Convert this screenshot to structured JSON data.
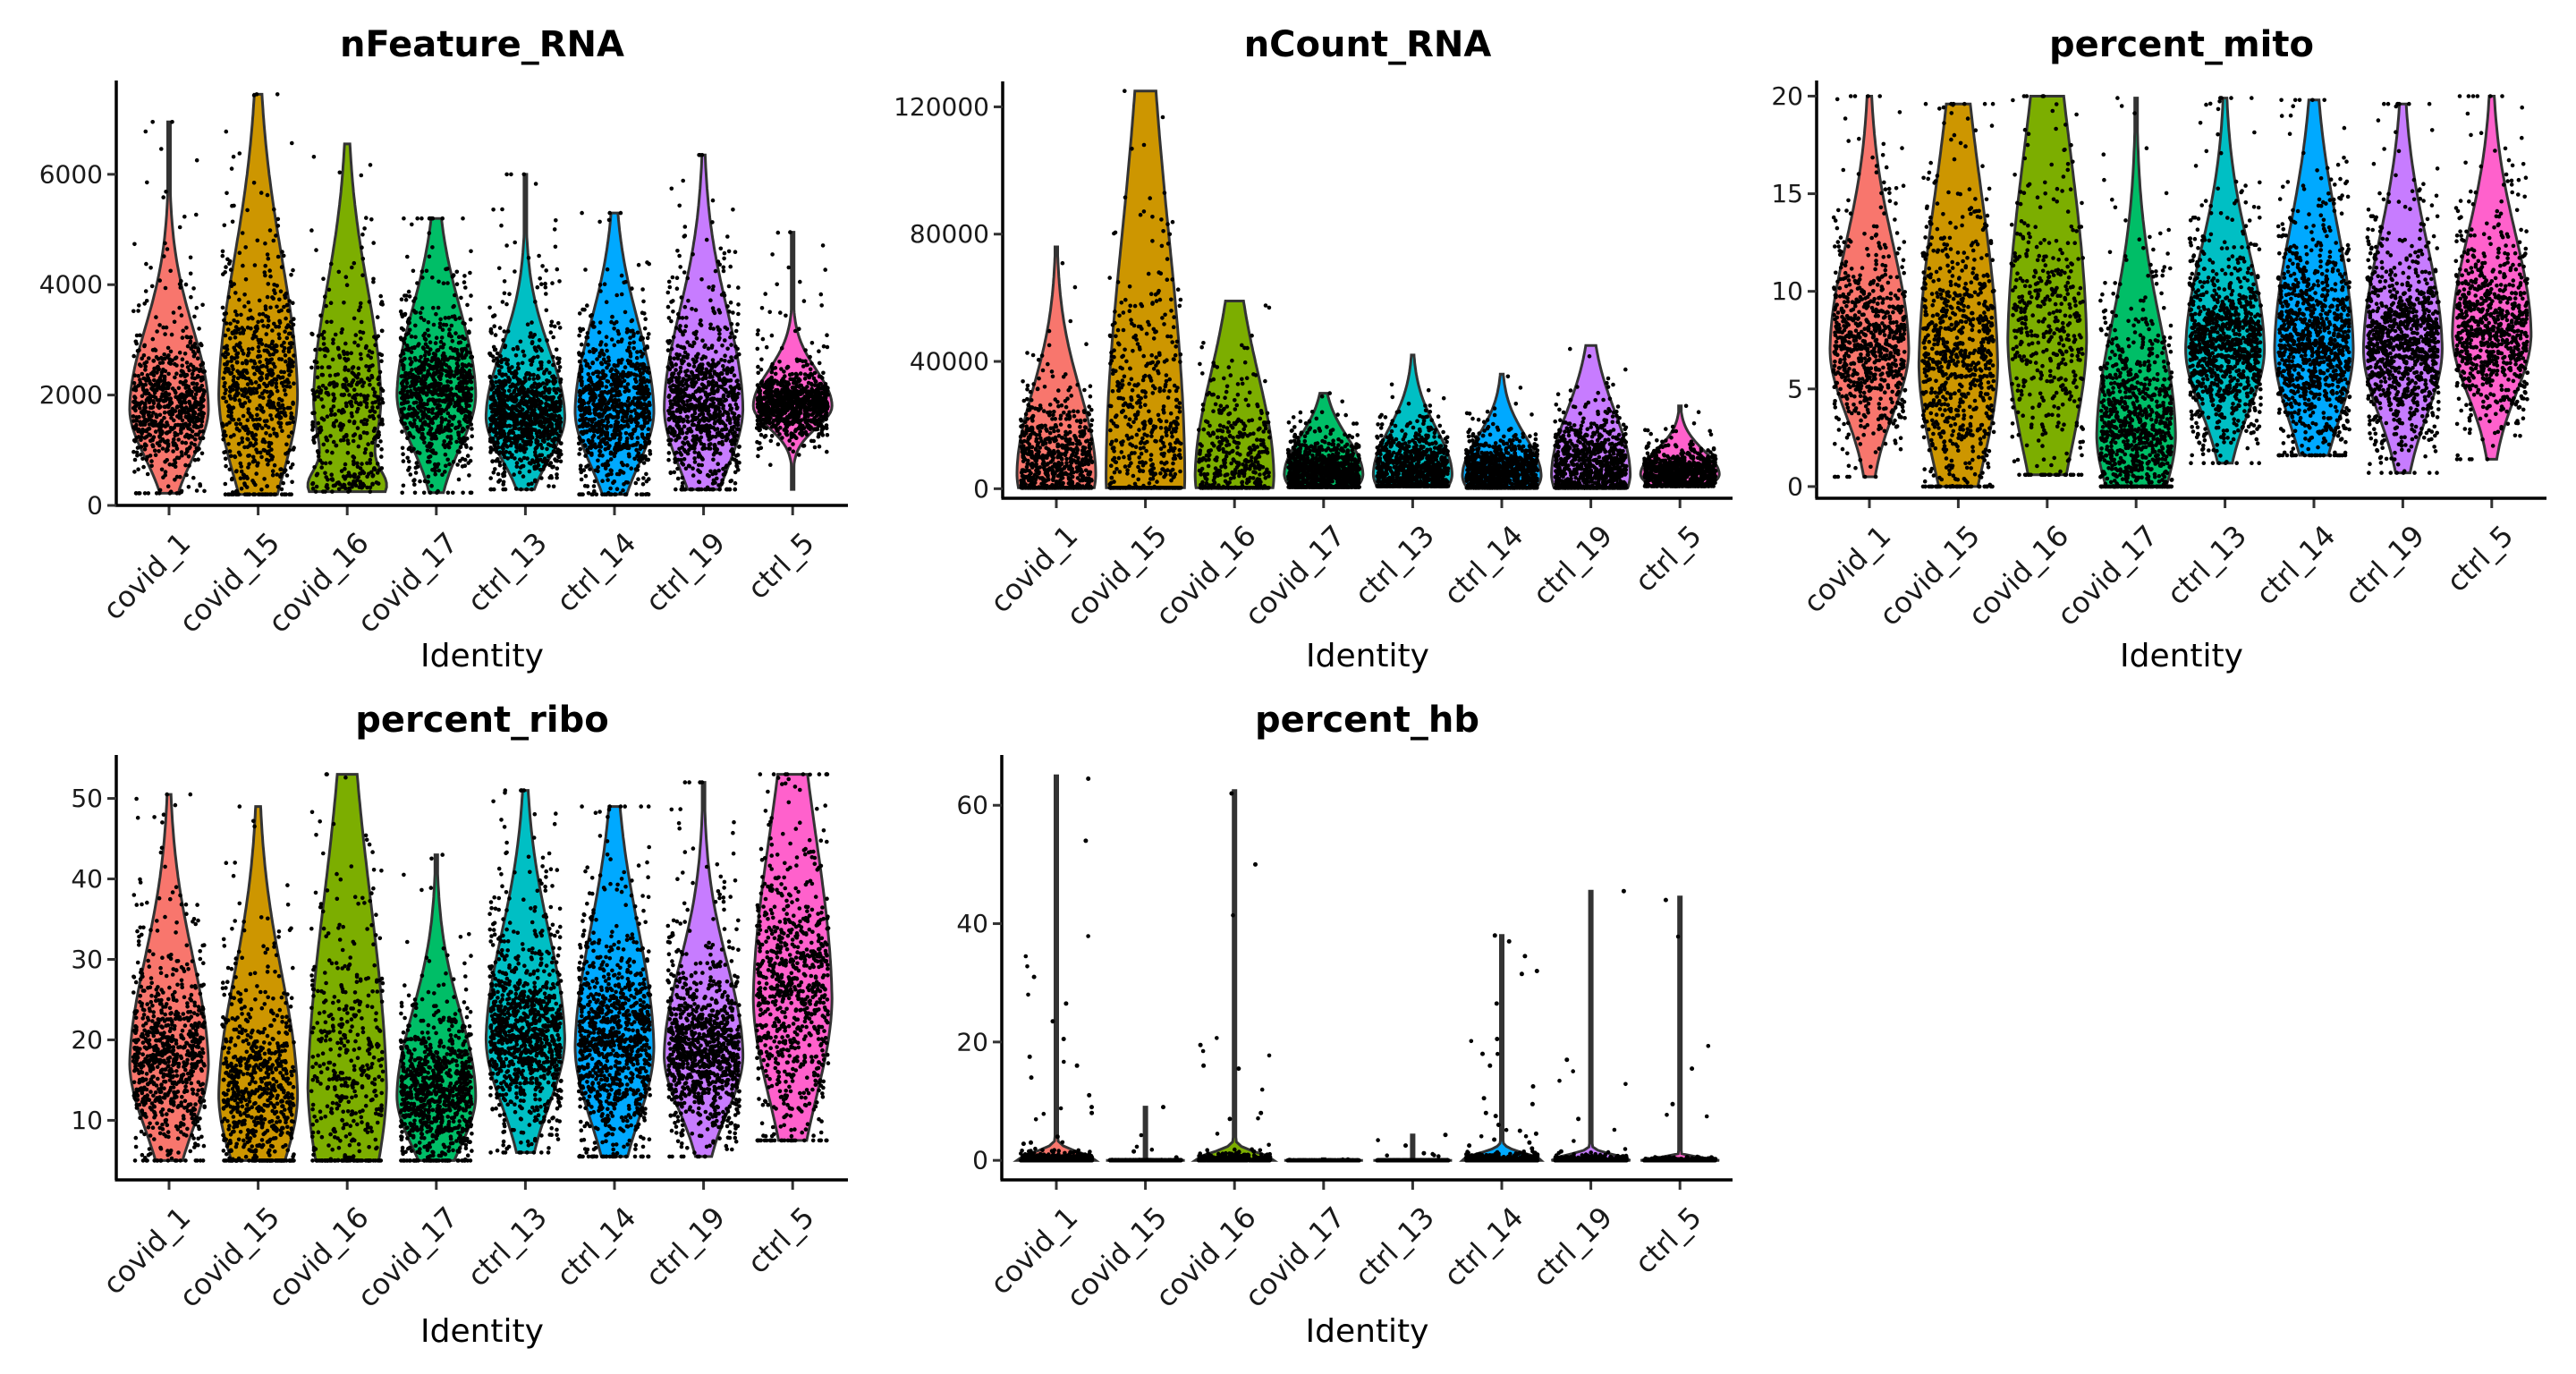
{
  "chart_data": [
    {
      "type": "violin",
      "title": "nFeature_RNA",
      "xlabel": "Identity",
      "ylabel": "",
      "ylim": [
        0,
        7700
      ],
      "yticks": [
        0,
        2000,
        4000,
        6000
      ],
      "categories": [
        "covid_1",
        "covid_15",
        "covid_16",
        "covid_17",
        "ctrl_13",
        "ctrl_14",
        "ctrl_19",
        "ctrl_5"
      ],
      "series": [
        {
          "name": "covid_1",
          "min": 220,
          "max": 6950,
          "mode": 1750,
          "spread": 0.22,
          "tail": 0.6,
          "points": 700
        },
        {
          "name": "covid_15",
          "min": 200,
          "max": 7450,
          "mode": 2000,
          "spread": 0.35,
          "tail": 0.8,
          "points": 700
        },
        {
          "name": "covid_16",
          "min": 250,
          "max": 6550,
          "mode": 1900,
          "spread": 0.33,
          "tail": 0.6,
          "bimodal": 300,
          "points": 450
        },
        {
          "name": "covid_17",
          "min": 230,
          "max": 5200,
          "mode": 2000,
          "spread": 0.32,
          "tail": 0.7,
          "points": 900
        },
        {
          "name": "ctrl_13",
          "min": 290,
          "max": 6000,
          "mode": 1600,
          "spread": 0.22,
          "tail": 0.7,
          "points": 1000
        },
        {
          "name": "ctrl_14",
          "min": 200,
          "max": 5300,
          "mode": 1700,
          "spread": 0.32,
          "tail": 0.6,
          "points": 900
        },
        {
          "name": "ctrl_19",
          "min": 290,
          "max": 6350,
          "mode": 1750,
          "spread": 0.3,
          "tail": 0.8,
          "points": 900
        },
        {
          "name": "ctrl_5",
          "min": 290,
          "max": 4950,
          "mode": 1800,
          "spread": 0.14,
          "tail": 0.4,
          "points": 900
        }
      ]
    },
    {
      "type": "violin",
      "title": "nCount_RNA",
      "xlabel": "Identity",
      "ylabel": "",
      "ylim": [
        -3000,
        128000
      ],
      "yticks": [
        0,
        40000,
        80000,
        120000
      ],
      "categories": [
        "covid_1",
        "covid_15",
        "covid_16",
        "covid_17",
        "ctrl_13",
        "ctrl_14",
        "ctrl_19",
        "ctrl_5"
      ],
      "series": [
        {
          "name": "covid_1",
          "min": 300,
          "max": 76000,
          "mode": 4500,
          "spread": 0.35,
          "tail": 0.25,
          "points": 800
        },
        {
          "name": "covid_15",
          "min": 300,
          "max": 125000,
          "mode": 4500,
          "spread": 0.6,
          "tail": 0.3,
          "points": 700
        },
        {
          "name": "covid_16",
          "min": 300,
          "max": 59000,
          "mode": 4000,
          "spread": 0.55,
          "tail": 0.3,
          "points": 500
        },
        {
          "name": "covid_17",
          "min": 500,
          "max": 30000,
          "mode": 4500,
          "spread": 0.4,
          "tail": 0.3,
          "points": 1000
        },
        {
          "name": "ctrl_13",
          "min": 800,
          "max": 42000,
          "mode": 4500,
          "spread": 0.35,
          "tail": 0.25,
          "points": 1000
        },
        {
          "name": "ctrl_14",
          "min": 300,
          "max": 36000,
          "mode": 4000,
          "spread": 0.35,
          "tail": 0.25,
          "points": 1000
        },
        {
          "name": "ctrl_19",
          "min": 300,
          "max": 45000,
          "mode": 4500,
          "spread": 0.45,
          "tail": 0.3,
          "points": 1000
        },
        {
          "name": "ctrl_5",
          "min": 800,
          "max": 26000,
          "mode": 4500,
          "spread": 0.3,
          "tail": 0.25,
          "points": 800
        }
      ]
    },
    {
      "type": "violin",
      "title": "percent_mito",
      "xlabel": "Identity",
      "ylabel": "",
      "ylim": [
        -0.6,
        20.8
      ],
      "yticks": [
        0,
        5,
        10,
        15,
        20
      ],
      "categories": [
        "covid_1",
        "covid_15",
        "covid_16",
        "covid_17",
        "ctrl_13",
        "ctrl_14",
        "ctrl_19",
        "ctrl_5"
      ],
      "series": [
        {
          "name": "covid_1",
          "min": 0.5,
          "max": 20,
          "mode": 7,
          "spread": 0.28,
          "tail": 0.7,
          "points": 750
        },
        {
          "name": "covid_15",
          "min": 0,
          "max": 19.6,
          "mode": 6.2,
          "spread": 0.45,
          "tail": 0.7,
          "points": 800
        },
        {
          "name": "covid_16",
          "min": 0.6,
          "max": 20,
          "mode": 7.5,
          "spread": 0.5,
          "tail": 0.8,
          "points": 450
        },
        {
          "name": "covid_17",
          "min": 0,
          "max": 19.9,
          "mode": 2.6,
          "spread": 0.3,
          "tail": 0.7,
          "points": 900
        },
        {
          "name": "ctrl_13",
          "min": 1.2,
          "max": 19.9,
          "mode": 7,
          "spread": 0.28,
          "tail": 0.7,
          "points": 1000
        },
        {
          "name": "ctrl_14",
          "min": 1.6,
          "max": 19.8,
          "mode": 7,
          "spread": 0.35,
          "tail": 0.7,
          "points": 1000
        },
        {
          "name": "ctrl_19",
          "min": 0.7,
          "max": 19.6,
          "mode": 7,
          "spread": 0.3,
          "tail": 0.7,
          "points": 1000
        },
        {
          "name": "ctrl_5",
          "min": 1.4,
          "max": 20,
          "mode": 7.8,
          "spread": 0.28,
          "tail": 0.7,
          "points": 800
        }
      ]
    },
    {
      "type": "violin",
      "title": "percent_ribo",
      "xlabel": "Identity",
      "ylabel": "",
      "ylim": [
        2.6,
        55.4
      ],
      "yticks": [
        10,
        20,
        30,
        40,
        50
      ],
      "categories": [
        "covid_1",
        "covid_15",
        "covid_16",
        "covid_17",
        "ctrl_13",
        "ctrl_14",
        "ctrl_19",
        "ctrl_5"
      ],
      "series": [
        {
          "name": "covid_1",
          "min": 5,
          "max": 50.5,
          "mode": 17,
          "spread": 0.3,
          "tail": 1.0,
          "points": 800
        },
        {
          "name": "covid_15",
          "min": 5,
          "max": 49,
          "mode": 13,
          "spread": 0.35,
          "tail": 0.7,
          "points": 700
        },
        {
          "name": "covid_16",
          "min": 5,
          "max": 53,
          "mode": 14,
          "spread": 0.5,
          "tail": 1.1,
          "points": 450
        },
        {
          "name": "covid_17",
          "min": 5,
          "max": 43,
          "mode": 13,
          "spread": 0.28,
          "tail": 0.6,
          "points": 900
        },
        {
          "name": "ctrl_13",
          "min": 6,
          "max": 51,
          "mode": 20,
          "spread": 0.3,
          "tail": 0.8,
          "points": 1000
        },
        {
          "name": "ctrl_14",
          "min": 5.5,
          "max": 49,
          "mode": 19,
          "spread": 0.35,
          "tail": 0.8,
          "points": 1000
        },
        {
          "name": "ctrl_19",
          "min": 5.5,
          "max": 52,
          "mode": 18,
          "spread": 0.25,
          "tail": 0.7,
          "points": 1000
        },
        {
          "name": "ctrl_5",
          "min": 7.5,
          "max": 53,
          "mode": 25,
          "spread": 0.45,
          "tail": 0.8,
          "points": 800
        }
      ]
    },
    {
      "type": "violin",
      "title": "percent_hb",
      "xlabel": "Identity",
      "ylabel": "",
      "ylim": [
        -3.3,
        68.5
      ],
      "yticks": [
        0,
        20,
        40,
        60
      ],
      "categories": [
        "covid_1",
        "covid_15",
        "covid_16",
        "covid_17",
        "ctrl_13",
        "ctrl_14",
        "ctrl_19",
        "ctrl_5"
      ],
      "series": [
        {
          "name": "covid_1",
          "min": 0,
          "max": 65,
          "mode": 0,
          "spread": 0.02,
          "tail": 0.1,
          "points": 500,
          "outliers": [
            64.5,
            54,
            31,
            26.5,
            23.5,
            20.5,
            17.5,
            16,
            14,
            11,
            9,
            8,
            4,
            3,
            2.8
          ]
        },
        {
          "name": "covid_15",
          "min": 0,
          "max": 9,
          "mode": 0,
          "spread": 0.01,
          "tail": 0.1,
          "points": 400,
          "outliers": [
            9,
            1.5,
            0.5
          ]
        },
        {
          "name": "covid_16",
          "min": 0,
          "max": 62.5,
          "mode": 0,
          "spread": 0.02,
          "tail": 0.1,
          "points": 400,
          "outliers": [
            62,
            50,
            19.5,
            16,
            15.5,
            8,
            7,
            1.5,
            1.2
          ]
        },
        {
          "name": "covid_17",
          "min": 0,
          "max": 0.3,
          "mode": 0,
          "spread": 0.01,
          "tail": 0.05,
          "points": 500,
          "outliers": []
        },
        {
          "name": "ctrl_13",
          "min": 0,
          "max": 4.3,
          "mode": 0,
          "spread": 0.01,
          "tail": 0.05,
          "points": 500,
          "outliers": [
            4.3,
            2.5,
            1.2
          ]
        },
        {
          "name": "ctrl_14",
          "min": 0,
          "max": 38,
          "mode": 0,
          "spread": 0.03,
          "tail": 0.1,
          "points": 600,
          "outliers": [
            38,
            37,
            34.5,
            32,
            31.5,
            26.5,
            20.5,
            18,
            16,
            12.5,
            10.5,
            9.5,
            8,
            7.5,
            6,
            5,
            4.5,
            3.5,
            3,
            2.5,
            2
          ]
        },
        {
          "name": "ctrl_19",
          "min": 0,
          "max": 45.5,
          "mode": 0,
          "spread": 0.02,
          "tail": 0.1,
          "points": 500,
          "outliers": [
            45.5,
            17,
            7,
            1.5,
            0.8
          ]
        },
        {
          "name": "ctrl_5",
          "min": 0,
          "max": 44.5,
          "mode": 0,
          "spread": 0.01,
          "tail": 0.05,
          "points": 500,
          "outliers": [
            44,
            15.5,
            9.5,
            0.5
          ]
        }
      ]
    }
  ],
  "colors": [
    "#F8766D",
    "#CD9600",
    "#7CAE00",
    "#00BE67",
    "#00BFC4",
    "#00A9FF",
    "#C77CFF",
    "#FF61CC"
  ]
}
